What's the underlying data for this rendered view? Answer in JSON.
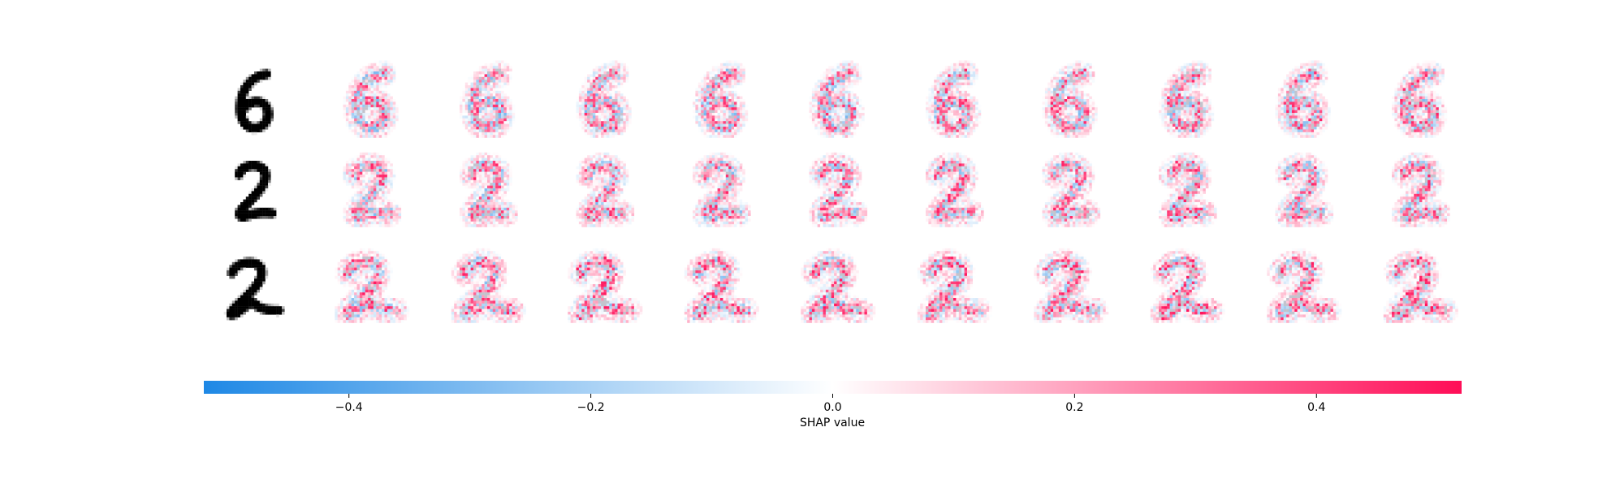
{
  "chart_data": {
    "type": "heatmap",
    "title": "",
    "grid": {
      "rows": 3,
      "explanation_columns": 10,
      "input_digits": [
        "6",
        "2",
        "2"
      ]
    },
    "colorbar": {
      "label": "SHAP value",
      "range": [
        -0.52,
        0.52
      ],
      "ticks": [
        {
          "value": -0.4,
          "label": "−0.4"
        },
        {
          "value": -0.2,
          "label": "−0.2"
        },
        {
          "value": 0.0,
          "label": "0.0"
        },
        {
          "value": 0.2,
          "label": "0.2"
        },
        {
          "value": 0.4,
          "label": "0.4"
        }
      ],
      "colors": {
        "negative": "#1e88e5",
        "zero": "#ffffff",
        "positive": "#ff0d57"
      }
    },
    "grid_lines": false
  }
}
